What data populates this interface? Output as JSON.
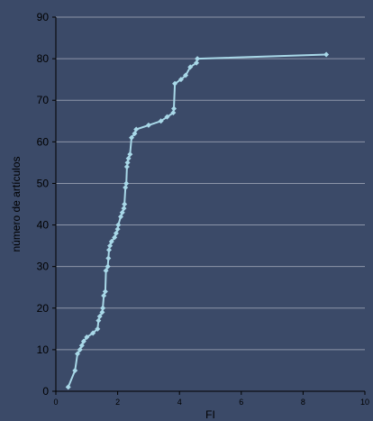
{
  "chart_data": {
    "type": "line",
    "title": "",
    "xlabel": "FI",
    "ylabel": "número de artículos",
    "xlim": [
      0,
      10
    ],
    "ylim": [
      0,
      90
    ],
    "xticks": [
      "0",
      "2",
      "4",
      "6",
      "8",
      "10"
    ],
    "yticks": [
      "0",
      "10",
      "20",
      "30",
      "40",
      "50",
      "60",
      "70",
      "80",
      "90"
    ],
    "grid": "horizontal",
    "legend": "none",
    "colors": {
      "background": "#3b4a68",
      "series": "#a8d8e8",
      "grid": "#8c95a8",
      "axis": "#000000"
    },
    "series": [
      {
        "x": [
          0.4,
          0.62,
          0.7,
          0.78,
          0.84,
          0.9,
          1.0,
          1.2,
          1.35,
          1.38,
          1.42,
          1.5,
          1.52,
          1.55,
          1.6,
          1.62,
          1.68,
          1.7,
          1.72,
          1.75,
          1.8,
          1.9,
          1.95,
          2.0,
          2.02,
          2.1,
          2.15,
          2.2,
          2.22,
          2.25,
          2.28,
          2.3,
          2.32,
          2.35,
          2.4,
          2.45,
          2.55,
          2.6,
          3.0,
          3.4,
          3.6,
          3.8,
          3.82,
          3.85,
          4.05,
          4.2,
          4.35,
          4.55,
          4.58,
          8.75
        ],
        "y": [
          1,
          5,
          9,
          10,
          11,
          12,
          13,
          14,
          15,
          17,
          18,
          19,
          20,
          23,
          24,
          29,
          30,
          32,
          34,
          35,
          36,
          37,
          38,
          39,
          40,
          42,
          43,
          44,
          45,
          49,
          50,
          54,
          55,
          56,
          57,
          61,
          62,
          63,
          64,
          65,
          66,
          67,
          68,
          74,
          75,
          76,
          78,
          79,
          80,
          81
        ]
      }
    ]
  }
}
